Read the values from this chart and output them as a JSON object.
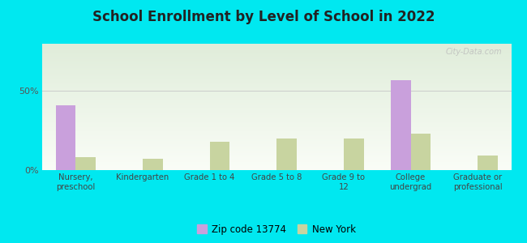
{
  "title": "School Enrollment by Level of School in 2022",
  "categories": [
    "Nursery,\npreschool",
    "Kindergarten",
    "Grade 1 to 4",
    "Grade 5 to 8",
    "Grade 9 to\n12",
    "College\nundergrad",
    "Graduate or\nprofessional"
  ],
  "zip_values": [
    41,
    0,
    0,
    0,
    0,
    57,
    0
  ],
  "ny_values": [
    8,
    7,
    18,
    20,
    20,
    23,
    9
  ],
  "zip_color": "#c9a0dc",
  "ny_color": "#c8d4a0",
  "background_outer": "#00e8f0",
  "ylim": [
    0,
    80
  ],
  "yticks": [
    0,
    50
  ],
  "ytick_labels": [
    "0%",
    "50%"
  ],
  "legend_zip_label": "Zip code 13774",
  "legend_ny_label": "New York",
  "bar_width": 0.3,
  "watermark": "City-Data.com"
}
